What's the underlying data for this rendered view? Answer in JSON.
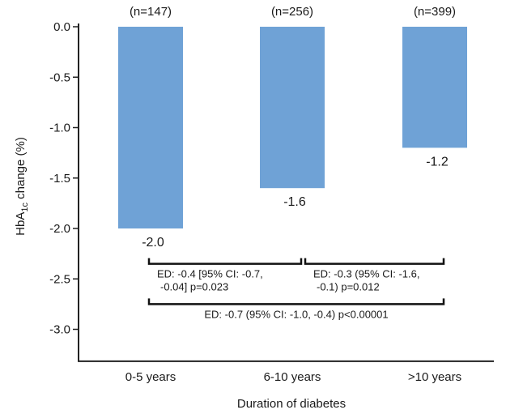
{
  "chart_data": {
    "type": "bar",
    "categories": [
      "0-5 years",
      "6-10 years",
      ">10 years"
    ],
    "values": [
      -2.0,
      -1.6,
      -1.2
    ],
    "value_labels": [
      "-2.0",
      "-1.6",
      "-1.2"
    ],
    "n_labels": [
      "(n=147)",
      "(n=256)",
      "(n=399)"
    ],
    "xlabel": "Duration of diabetes",
    "ylabel": {
      "pre": "HbA",
      "sub": "1c",
      "post": " change (%)"
    },
    "ylim": [
      -3.3,
      0.0
    ],
    "yticks": [
      0.0,
      -0.5,
      -1.0,
      -1.5,
      -2.0,
      -2.5,
      -3.0
    ],
    "ytick_labels": [
      "0.0",
      "-0.5",
      "-1.0",
      "-1.5",
      "-2.0",
      "-2.5",
      "-3.0"
    ],
    "grid": false,
    "legend": "none",
    "bar_color": "#6fa2d6",
    "annotations": [
      {
        "from": 0,
        "to": 1,
        "y": -2.35,
        "lines": [
          "ED: -0.4 [95% CI: -0.7,",
          "-0.04] p=0.023"
        ]
      },
      {
        "from": 1,
        "to": 2,
        "y": -2.35,
        "lines": [
          "ED: -0.3 (95% CI: -1.6,",
          "-0.1) p=0.012"
        ]
      },
      {
        "from": 0,
        "to": 2,
        "y": -2.75,
        "lines": [
          "ED: -0.7 (95% CI: -1.0, -0.4) p<0.00001"
        ]
      }
    ]
  }
}
